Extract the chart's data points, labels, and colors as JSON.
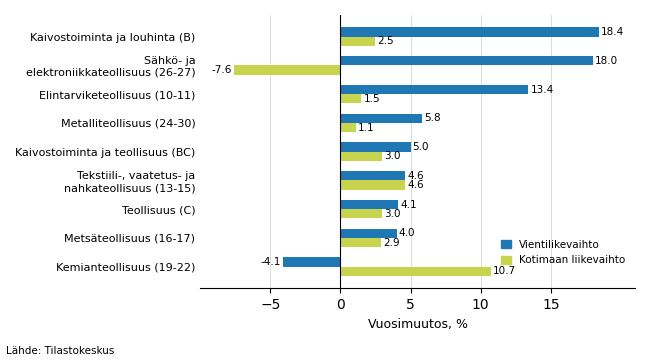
{
  "categories": [
    "Kaivostoiminta ja louhinta (B)",
    "Sähkö- ja\nelektroniikkateollisuus (26-27)",
    "Elintarviketeollisuus (10-11)",
    "Metalliteollisuus (24-30)",
    "Kaivostoiminta ja teollisuus (BC)",
    "Tekstiili-, vaatetus- ja\nnahkateollisuus (13-15)",
    "Teollisuus (C)",
    "Metsäteollisuus (16-17)",
    "Kemianteollisuus (19-22)"
  ],
  "vienti": [
    18.4,
    18.0,
    13.4,
    5.8,
    5.0,
    4.6,
    4.1,
    4.0,
    -4.1
  ],
  "kotimaan": [
    2.5,
    -7.6,
    1.5,
    1.1,
    3.0,
    4.6,
    3.0,
    2.9,
    10.7
  ],
  "color_vienti": "#1f77b4",
  "color_kotimaan": "#c8d44e",
  "xlabel": "Vuosimuutos, %",
  "legend_vienti": "Vientilikevaihto",
  "legend_kotimaan": "Kotimaan liikevaihto",
  "source": "Lähde: Tilastokeskus",
  "xlim": [
    -10,
    21
  ],
  "xticks": [
    -5,
    0,
    5,
    10,
    15
  ],
  "bar_height": 0.32
}
